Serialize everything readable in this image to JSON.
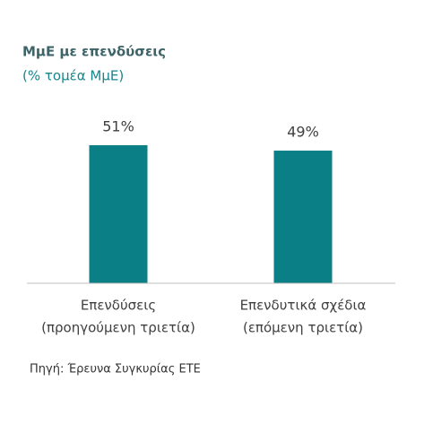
{
  "chart_data": {
    "type": "bar",
    "title": "ΜμΕ με επενδύσεις",
    "subtitle": "(% τομέα ΜμΕ)",
    "categories": [
      [
        "Επενδύσεις",
        "(προηγούμενη τριετία)"
      ],
      [
        "Επενδυτικά σχέδια",
        "(επόμενη τριετία)"
      ]
    ],
    "values": [
      51,
      49
    ],
    "value_labels": [
      "51%",
      "49%"
    ],
    "color": "#0b7f86",
    "source": "Πηγή:  Έρευνα Συγκυρίας ΕΤΕ"
  }
}
